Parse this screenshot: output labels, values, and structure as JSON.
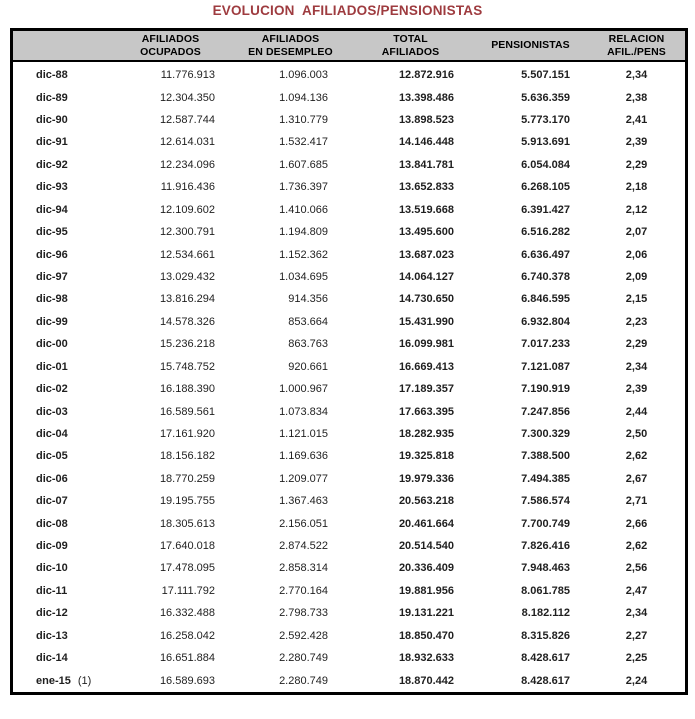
{
  "title": "EVOLUCION  AFILIADOS/PENSIONISTAS",
  "colors": {
    "title": "#9E3B3F",
    "header_bg": "#C7C7C7",
    "border": "#000000",
    "text": "#1F1F1F"
  },
  "table": {
    "columns": [
      {
        "id": "periodo",
        "line1": "",
        "line2": ""
      },
      {
        "id": "afiliados_ocupados",
        "line1": "AFILIADOS",
        "line2": "OCUPADOS"
      },
      {
        "id": "afiliados_desempleo",
        "line1": "AFILIADOS",
        "line2": "EN DESEMPLEO"
      },
      {
        "id": "total_afiliados",
        "line1": "TOTAL",
        "line2": "AFILIADOS"
      },
      {
        "id": "pensionistas",
        "line1": "PENSIONISTAS",
        "line2": ""
      },
      {
        "id": "relacion_afil_pens",
        "line1": "RELACION",
        "line2": "AFIL./PENS"
      }
    ],
    "rows": [
      {
        "period": "dic-88",
        "values": [
          "11.776.913",
          "1.096.003",
          "12.872.916",
          "5.507.151",
          "2,34"
        ]
      },
      {
        "period": "dic-89",
        "values": [
          "12.304.350",
          "1.094.136",
          "13.398.486",
          "5.636.359",
          "2,38"
        ]
      },
      {
        "period": "dic-90",
        "values": [
          "12.587.744",
          "1.310.779",
          "13.898.523",
          "5.773.170",
          "2,41"
        ]
      },
      {
        "period": "dic-91",
        "values": [
          "12.614.031",
          "1.532.417",
          "14.146.448",
          "5.913.691",
          "2,39"
        ]
      },
      {
        "period": "dic-92",
        "values": [
          "12.234.096",
          "1.607.685",
          "13.841.781",
          "6.054.084",
          "2,29"
        ]
      },
      {
        "period": "dic-93",
        "values": [
          "11.916.436",
          "1.736.397",
          "13.652.833",
          "6.268.105",
          "2,18"
        ]
      },
      {
        "period": "dic-94",
        "values": [
          "12.109.602",
          "1.410.066",
          "13.519.668",
          "6.391.427",
          "2,12"
        ]
      },
      {
        "period": "dic-95",
        "values": [
          "12.300.791",
          "1.194.809",
          "13.495.600",
          "6.516.282",
          "2,07"
        ]
      },
      {
        "period": "dic-96",
        "values": [
          "12.534.661",
          "1.152.362",
          "13.687.023",
          "6.636.497",
          "2,06"
        ]
      },
      {
        "period": "dic-97",
        "values": [
          "13.029.432",
          "1.034.695",
          "14.064.127",
          "6.740.378",
          "2,09"
        ]
      },
      {
        "period": "dic-98",
        "values": [
          "13.816.294",
          "914.356",
          "14.730.650",
          "6.846.595",
          "2,15"
        ]
      },
      {
        "period": "dic-99",
        "values": [
          "14.578.326",
          "853.664",
          "15.431.990",
          "6.932.804",
          "2,23"
        ]
      },
      {
        "period": "dic-00",
        "values": [
          "15.236.218",
          "863.763",
          "16.099.981",
          "7.017.233",
          "2,29"
        ]
      },
      {
        "period": "dic-01",
        "values": [
          "15.748.752",
          "920.661",
          "16.669.413",
          "7.121.087",
          "2,34"
        ]
      },
      {
        "period": "dic-02",
        "values": [
          "16.188.390",
          "1.000.967",
          "17.189.357",
          "7.190.919",
          "2,39"
        ]
      },
      {
        "period": "dic-03",
        "values": [
          "16.589.561",
          "1.073.834",
          "17.663.395",
          "7.247.856",
          "2,44"
        ]
      },
      {
        "period": "dic-04",
        "values": [
          "17.161.920",
          "1.121.015",
          "18.282.935",
          "7.300.329",
          "2,50"
        ]
      },
      {
        "period": "dic-05",
        "values": [
          "18.156.182",
          "1.169.636",
          "19.325.818",
          "7.388.500",
          "2,62"
        ]
      },
      {
        "period": "dic-06",
        "values": [
          "18.770.259",
          "1.209.077",
          "19.979.336",
          "7.494.385",
          "2,67"
        ]
      },
      {
        "period": "dic-07",
        "values": [
          "19.195.755",
          "1.367.463",
          "20.563.218",
          "7.586.574",
          "2,71"
        ]
      },
      {
        "period": "dic-08",
        "values": [
          "18.305.613",
          "2.156.051",
          "20.461.664",
          "7.700.749",
          "2,66"
        ]
      },
      {
        "period": "dic-09",
        "values": [
          "17.640.018",
          "2.874.522",
          "20.514.540",
          "7.826.416",
          "2,62"
        ]
      },
      {
        "period": "dic-10",
        "values": [
          "17.478.095",
          "2.858.314",
          "20.336.409",
          "7.948.463",
          "2,56"
        ]
      },
      {
        "period": "dic-11",
        "values": [
          "17.111.792",
          "2.770.164",
          "19.881.956",
          "8.061.785",
          "2,47"
        ]
      },
      {
        "period": "dic-12",
        "values": [
          "16.332.488",
          "2.798.733",
          "19.131.221",
          "8.182.112",
          "2,34"
        ]
      },
      {
        "period": "dic-13",
        "values": [
          "16.258.042",
          "2.592.428",
          "18.850.470",
          "8.315.826",
          "2,27"
        ]
      },
      {
        "period": "dic-14",
        "values": [
          "16.651.884",
          "2.280.749",
          "18.932.633",
          "8.428.617",
          "2,25"
        ]
      },
      {
        "period": "ene-15",
        "note": "(1)",
        "values": [
          "16.589.693",
          "2.280.749",
          "18.870.442",
          "8.428.617",
          "2,24"
        ]
      }
    ]
  }
}
